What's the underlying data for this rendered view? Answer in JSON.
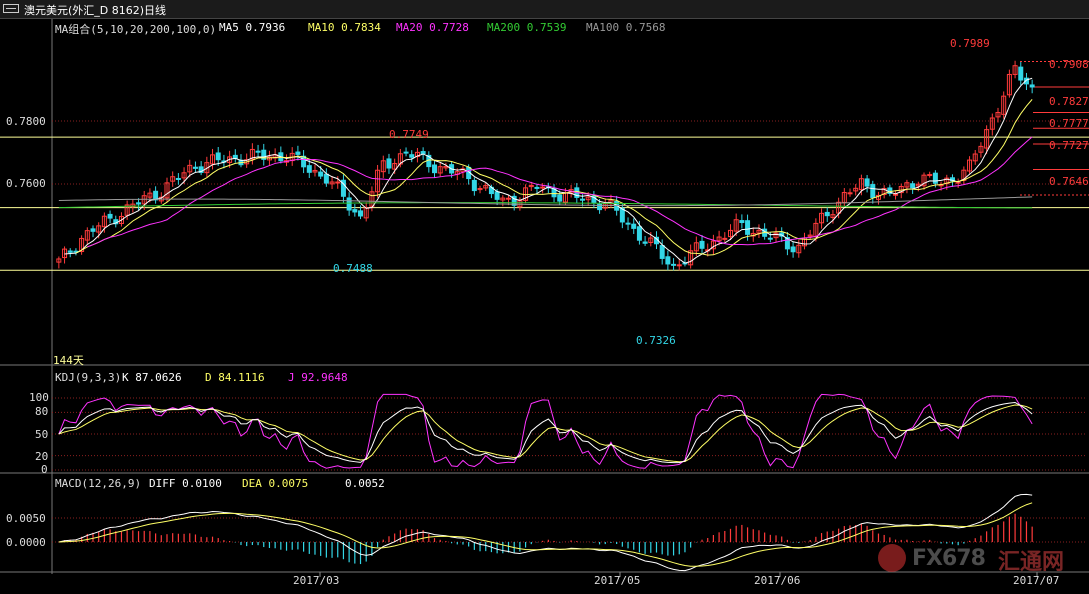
{
  "window": {
    "title": "澳元美元(外汇_D 8162)日线"
  },
  "legends": {
    "ma": {
      "name": "MA组合(5,10,20,200,100,0)",
      "ma5": "MA5 0.7936",
      "ma10": "MA10 0.7834",
      "ma20": "MA20 0.7728",
      "ma200": "MA200 0.7539",
      "ma100": "MA100 0.7568"
    },
    "kdj": {
      "name": "KDJ(9,3,3)",
      "k": "K 87.0626",
      "d": "D 84.1116",
      "j": "J 92.9648"
    },
    "macd": {
      "name": "MACD(12,26,9)",
      "diff": "DIFF 0.0100",
      "dea": "DEA 0.0075",
      "macd": "0.0052"
    }
  },
  "price_axis": {
    "ticks": [
      "0.7800",
      "0.7600"
    ]
  },
  "kdj_axis": {
    "ticks": [
      "100",
      "80",
      "50",
      "20",
      "0"
    ]
  },
  "macd_axis": {
    "ticks": [
      "0.0050",
      "0.0000"
    ]
  },
  "x_axis": {
    "ticks": [
      "2017/03",
      "2017/05",
      "2017/06",
      "2017/07"
    ]
  },
  "annotations": {
    "high_label": "0.7749",
    "low_label_1": "0.7488",
    "low_label_2": "0.7326",
    "period_label": "144天",
    "top_label": "0.7989"
  },
  "right_levels": [
    "0.7908",
    "0.7827",
    "0.7777",
    "0.7727",
    "0.7646"
  ],
  "watermark": {
    "text": "FX678",
    "cn": "汇通网"
  },
  "colors": {
    "bg": "#000000",
    "up": "#ff3b3b",
    "down": "#33d6e6",
    "ma5": "#ffffff",
    "ma10": "#ffff66",
    "ma20": "#ff33ff",
    "ma200": "#33cc33",
    "ma100": "#999999",
    "level": "#ffff99"
  },
  "chart_data": {
    "type": "candlestick",
    "title": "澳元美元(外汇_D 8162)日线",
    "x_labels": [
      "2017/03",
      "2017/05",
      "2017/06",
      "2017/07"
    ],
    "price_ylim": [
      0.731,
      0.7995
    ],
    "horizontal_levels": [
      0.7749,
      0.7525,
      0.7326
    ],
    "anchors": [
      {
        "i": 0,
        "c": 0.735
      },
      {
        "i": 4,
        "c": 0.743
      },
      {
        "i": 10,
        "c": 0.75
      },
      {
        "i": 18,
        "c": 0.758
      },
      {
        "i": 24,
        "c": 0.766
      },
      {
        "i": 32,
        "c": 0.7685
      },
      {
        "i": 40,
        "c": 0.769
      },
      {
        "i": 47,
        "c": 0.762
      },
      {
        "i": 53,
        "c": 0.7495
      },
      {
        "i": 57,
        "c": 0.766
      },
      {
        "i": 61,
        "c": 0.77
      },
      {
        "i": 66,
        "c": 0.766
      },
      {
        "i": 72,
        "c": 0.762
      },
      {
        "i": 78,
        "c": 0.754
      },
      {
        "i": 84,
        "c": 0.759
      },
      {
        "i": 90,
        "c": 0.756
      },
      {
        "i": 96,
        "c": 0.754
      },
      {
        "i": 102,
        "c": 0.744
      },
      {
        "i": 108,
        "c": 0.734
      },
      {
        "i": 114,
        "c": 0.741
      },
      {
        "i": 120,
        "c": 0.747
      },
      {
        "i": 125,
        "c": 0.743
      },
      {
        "i": 130,
        "c": 0.74
      },
      {
        "i": 136,
        "c": 0.753
      },
      {
        "i": 141,
        "c": 0.76
      },
      {
        "i": 146,
        "c": 0.756
      },
      {
        "i": 151,
        "c": 0.762
      },
      {
        "i": 155,
        "c": 0.76
      },
      {
        "i": 160,
        "c": 0.765
      },
      {
        "i": 164,
        "c": 0.781
      },
      {
        "i": 168,
        "c": 0.796
      },
      {
        "i": 171,
        "c": 0.7908
      }
    ]
  }
}
